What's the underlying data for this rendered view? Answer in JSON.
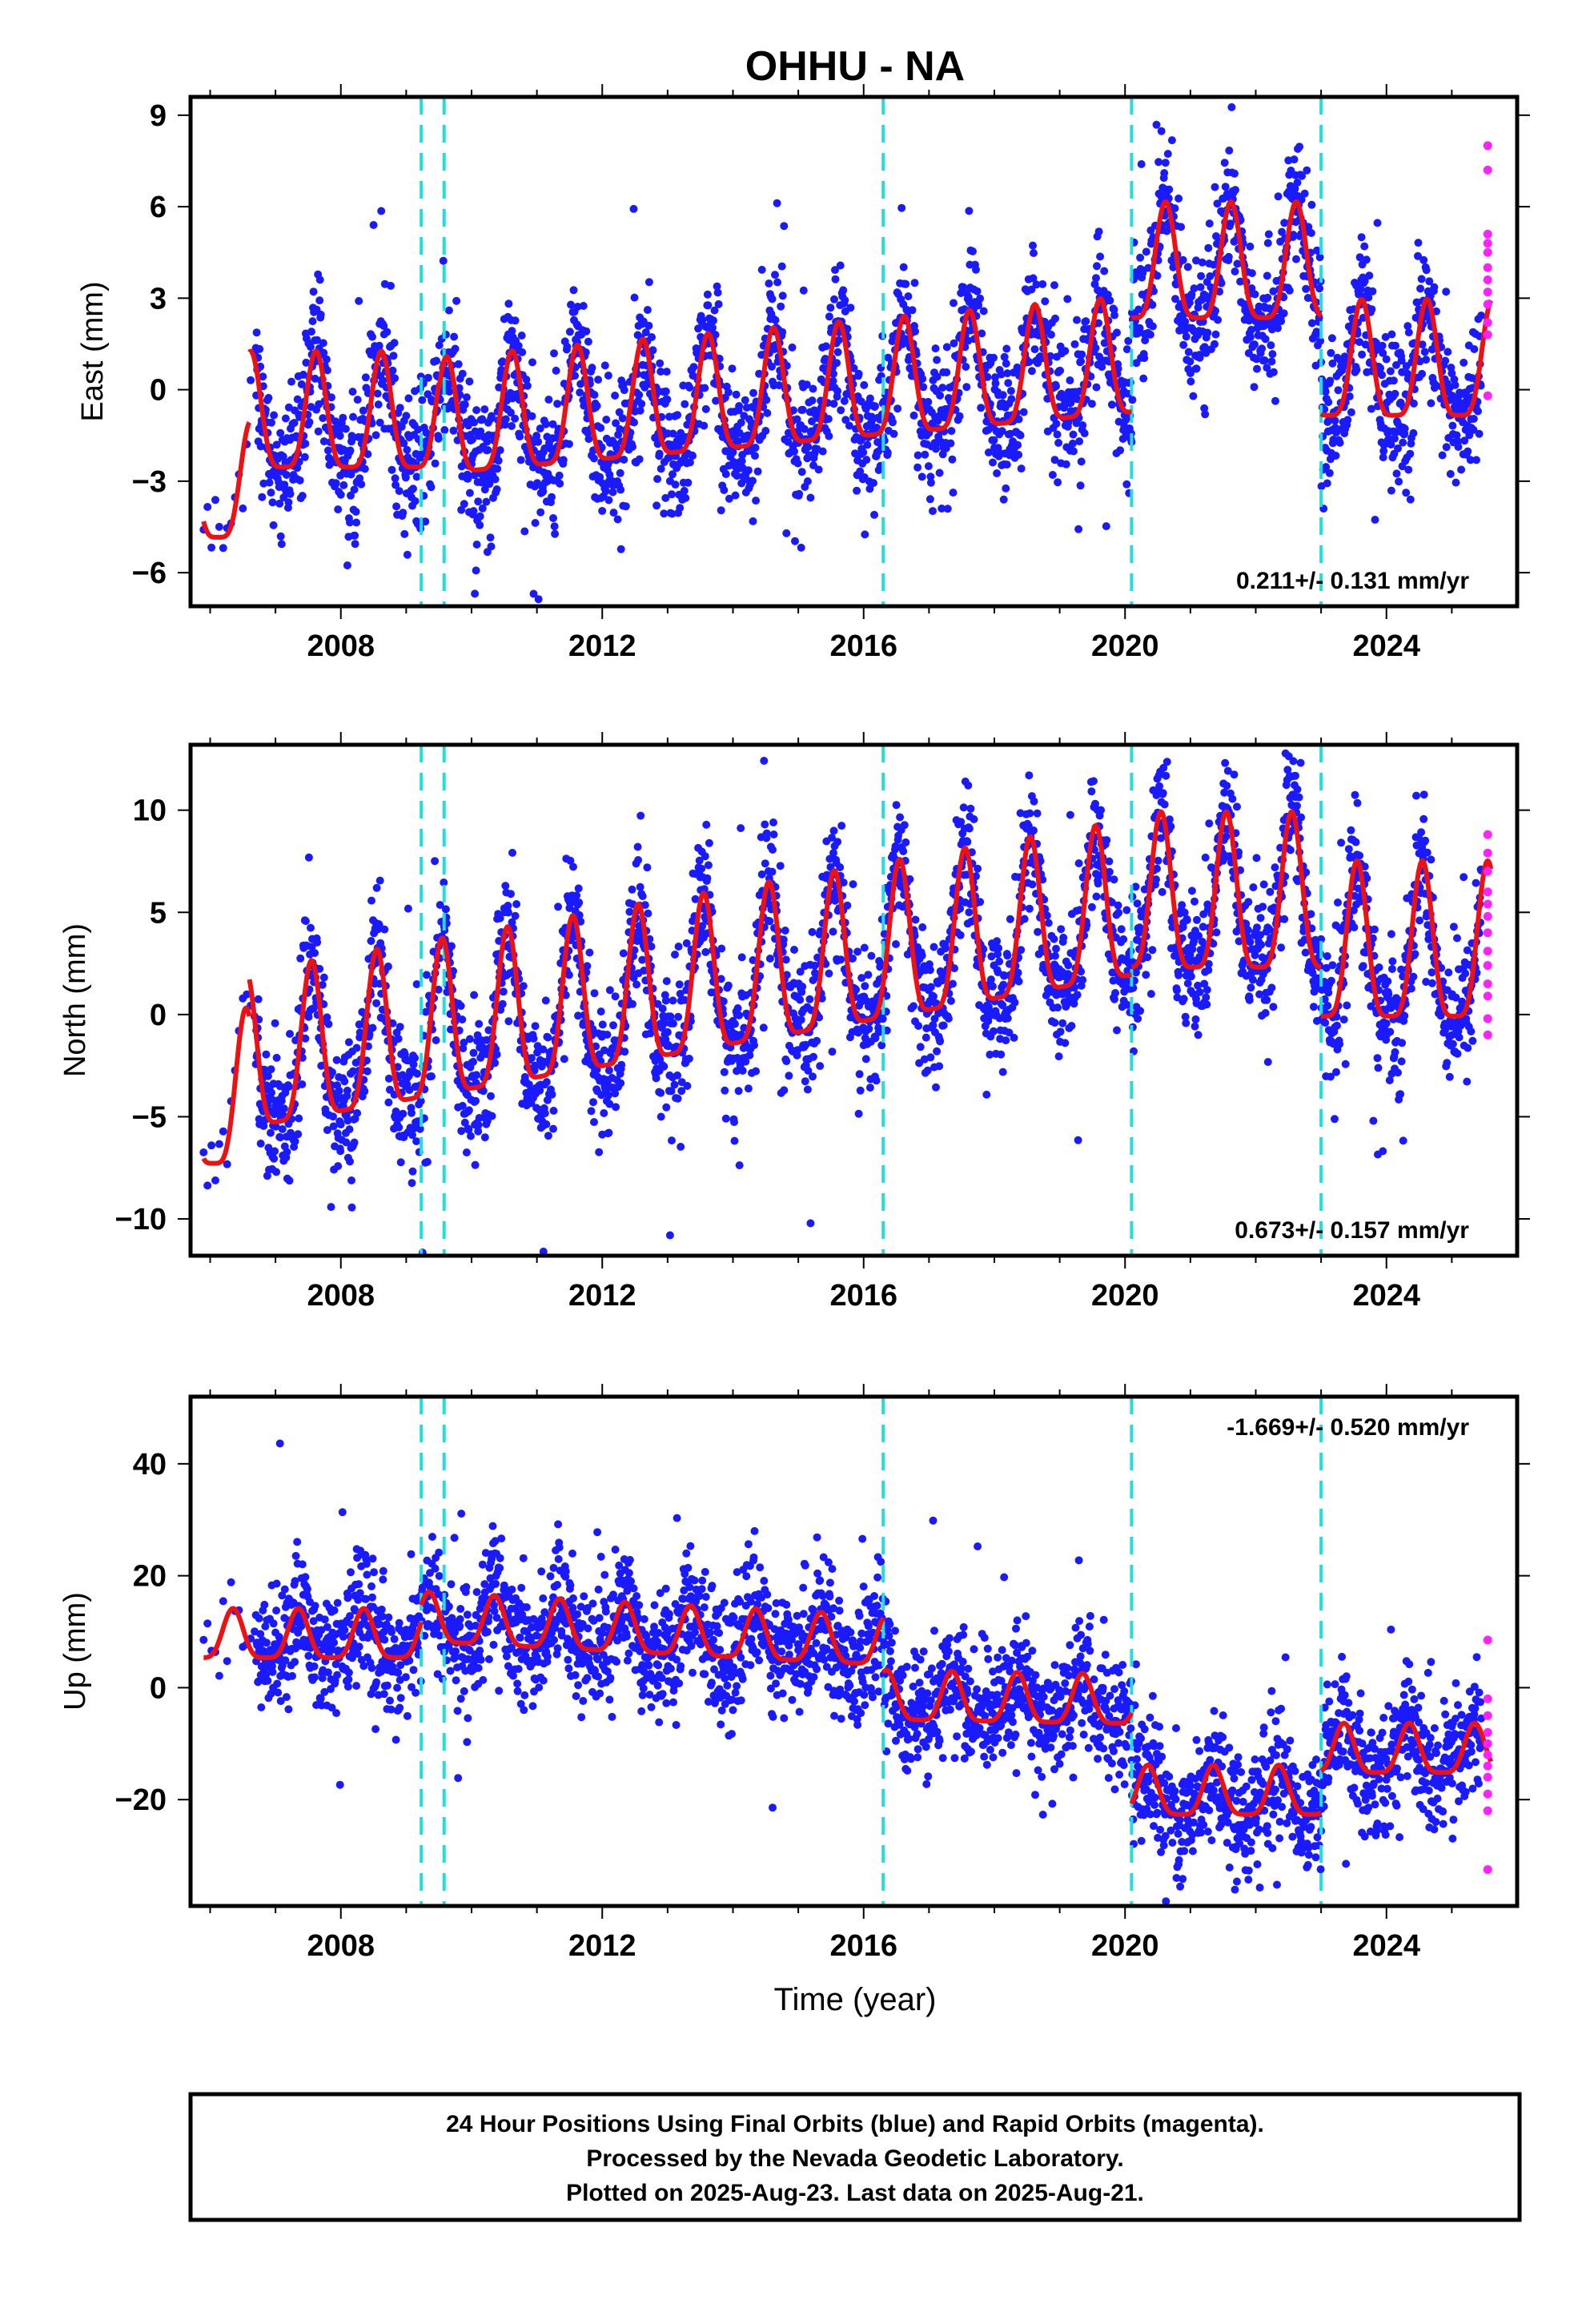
{
  "title": "OHHU - NA",
  "xlabel": "Time (year)",
  "footer": {
    "line1": "24 Hour Positions Using Final Orbits (blue) and Rapid Orbits (magenta).",
    "line2": "Processed by the Nevada Geodetic Laboratory.",
    "line3": "Plotted on 2025-Aug-23. Last data on 2025-Aug-21."
  },
  "colors": {
    "final": "#1a1aff",
    "rapid": "#ff22ff",
    "model": "#ee1111",
    "steps": "#22dddd",
    "frame": "#000000"
  },
  "chart_data": [
    {
      "type": "scatter",
      "panel": "East",
      "ylabel": "East (mm)",
      "rate_text": "0.211+/- 0.131 mm/yr",
      "rate_position": "bottom-right",
      "xlim": [
        2005.7,
        2026.0
      ],
      "ylim": [
        -7.1,
        9.6
      ],
      "xticks": [
        2008,
        2012,
        2016,
        2020,
        2024
      ],
      "yticks": [
        -6,
        -3,
        0,
        3,
        6,
        9
      ],
      "ytick_labels": [
        "−6",
        "−3",
        "0",
        "3",
        "6",
        "9"
      ],
      "step_epochs": [
        2009.23,
        2009.58,
        2016.3,
        2020.1,
        2023.0
      ],
      "model": {
        "amplitude": 1.9,
        "phase": 0.62,
        "segments": [
          [
            2005.9,
            2006.6,
            -3.7
          ],
          [
            2006.6,
            2009.5,
            -1.4
          ],
          [
            2009.5,
            2020.1,
            -1.6,
            0.19
          ],
          [
            2020.1,
            2023.0,
            3.5
          ],
          [
            2023.0,
            2025.6,
            0.3
          ]
        ]
      },
      "scatter_summary": {
        "start": 2006.7,
        "end": 2025.45,
        "spread": 1.1,
        "sparse_start": 2005.9
      },
      "rapid_points": {
        "epoch": 2025.55,
        "values": [
          8.0,
          7.2,
          5.1,
          4.8,
          4.5,
          4.0,
          3.6,
          3.2,
          2.8,
          2.2,
          1.8,
          -0.2
        ]
      }
    },
    {
      "type": "scatter",
      "panel": "North",
      "ylabel": "North (mm)",
      "rate_text": "0.673+/- 0.157 mm/yr",
      "rate_position": "bottom-right",
      "xlim": [
        2005.7,
        2026.0
      ],
      "ylim": [
        -11.8,
        13.2
      ],
      "xticks": [
        2008,
        2012,
        2016,
        2020,
        2024
      ],
      "yticks": [
        -10,
        -5,
        0,
        5,
        10
      ],
      "ytick_labels": [
        "−10",
        "−5",
        "0",
        "5",
        "10"
      ],
      "step_epochs": [
        2009.23,
        2009.58,
        2016.3,
        2020.1,
        2023.0
      ],
      "model": {
        "amplitude": 3.8,
        "phase": 0.55,
        "segments": [
          [
            2005.9,
            2006.6,
            -5.0
          ],
          [
            2006.6,
            2020.1,
            -3.2,
            0.55
          ],
          [
            2020.1,
            2023.0,
            4.6
          ],
          [
            2023.0,
            2025.6,
            2.2
          ]
        ]
      },
      "scatter_summary": {
        "start": 2006.7,
        "end": 2025.45,
        "spread": 1.6,
        "sparse_start": 2005.9
      },
      "rapid_points": {
        "epoch": 2025.55,
        "values": [
          8.8,
          7.9,
          7.0,
          6.0,
          5.4,
          4.8,
          4.0,
          3.1,
          2.4,
          1.5,
          0.9,
          -0.2,
          -1.0
        ]
      }
    },
    {
      "type": "scatter",
      "panel": "Up",
      "ylabel": "Up (mm)",
      "rate_text": "-1.669+/- 0.520 mm/yr",
      "rate_position": "top-right",
      "xlim": [
        2005.7,
        2026.0
      ],
      "ylim": [
        -39.0,
        52.0
      ],
      "xticks": [
        2008,
        2012,
        2016,
        2020,
        2024
      ],
      "yticks": [
        -20,
        0,
        20,
        40
      ],
      "ytick_labels": [
        "−20",
        "0",
        "20",
        "40"
      ],
      "step_epochs": [
        2009.23,
        2009.58,
        2016.3,
        2020.1,
        2023.0
      ],
      "model": {
        "amplitude": 4.4,
        "phase": 0.35,
        "segments": [
          [
            2005.9,
            2009.23,
            8.0
          ],
          [
            2009.23,
            2016.3,
            11.0,
            -0.6
          ],
          [
            2016.3,
            2020.1,
            -3.0,
            -0.2
          ],
          [
            2020.1,
            2023.0,
            -20.0
          ],
          [
            2023.0,
            2025.6,
            -12.5
          ]
        ]
      },
      "scatter_summary": {
        "start": 2006.7,
        "end": 2025.45,
        "spread": 5.2,
        "sparse_start": 2005.9
      },
      "rapid_points": {
        "epoch": 2025.55,
        "values": [
          8.5,
          -2.0,
          -5.0,
          -8.0,
          -10.0,
          -12.0,
          -14.0,
          -16.0,
          -19.0,
          -22.0,
          -32.5
        ]
      }
    }
  ]
}
